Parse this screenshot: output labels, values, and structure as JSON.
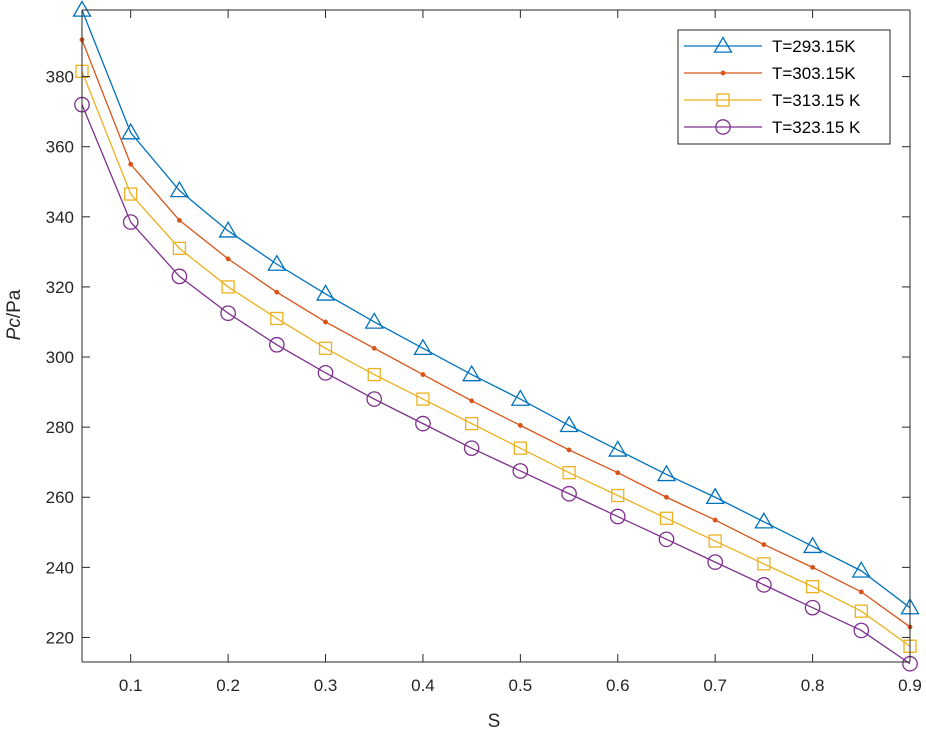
{
  "chart_data": {
    "type": "line",
    "xlabel": "S",
    "ylabel_italic": "Pc",
    "ylabel_rest": "/Pa",
    "xlim": [
      0.05,
      0.9
    ],
    "ylim": [
      213,
      399
    ],
    "x_ticks": [
      0.1,
      0.2,
      0.3,
      0.4,
      0.5,
      0.6,
      0.7,
      0.8,
      0.9
    ],
    "x_tick_labels": [
      "0.1",
      "0.2",
      "0.3",
      "0.4",
      "0.5",
      "0.6",
      "0.7",
      "0.8",
      "0.9"
    ],
    "y_ticks": [
      220,
      240,
      260,
      280,
      300,
      320,
      340,
      360,
      380
    ],
    "y_tick_labels": [
      "220",
      "240",
      "260",
      "280",
      "300",
      "320",
      "340",
      "360",
      "380"
    ],
    "grid": false,
    "legend_position": "top-right",
    "x": [
      0.05,
      0.1,
      0.15,
      0.2,
      0.25,
      0.3,
      0.35,
      0.4,
      0.45,
      0.5,
      0.55,
      0.6,
      0.65,
      0.7,
      0.75,
      0.8,
      0.85,
      0.9
    ],
    "series": [
      {
        "name": "T=293.15K",
        "color": "#0072BD",
        "marker": "triangle",
        "values": [
          399,
          364,
          347.5,
          336,
          326.5,
          318,
          310,
          302.5,
          295,
          288,
          280.5,
          273.5,
          266.5,
          260,
          253,
          246,
          239,
          228.5
        ]
      },
      {
        "name": "T=303.15K",
        "color": "#D95319",
        "marker": "dot",
        "values": [
          390.5,
          355,
          339,
          328,
          318.5,
          310,
          302.5,
          295,
          287.5,
          280.5,
          273.5,
          267,
          260,
          253.5,
          246.5,
          240,
          233,
          223
        ]
      },
      {
        "name": "T=313.15 K",
        "color": "#EDB120",
        "marker": "square",
        "values": [
          381.5,
          346.5,
          331,
          320,
          311,
          302.5,
          295,
          288,
          281,
          274,
          267,
          260.5,
          254,
          247.5,
          241,
          234.5,
          227.5,
          217.5
        ]
      },
      {
        "name": "T=323.15 K",
        "color": "#7E2F8E",
        "marker": "circle",
        "values": [
          372,
          338.5,
          323,
          312.5,
          303.5,
          295.5,
          288,
          281,
          274,
          267.5,
          261,
          254.5,
          248,
          241.5,
          235,
          228.5,
          222,
          212.5
        ]
      }
    ]
  }
}
